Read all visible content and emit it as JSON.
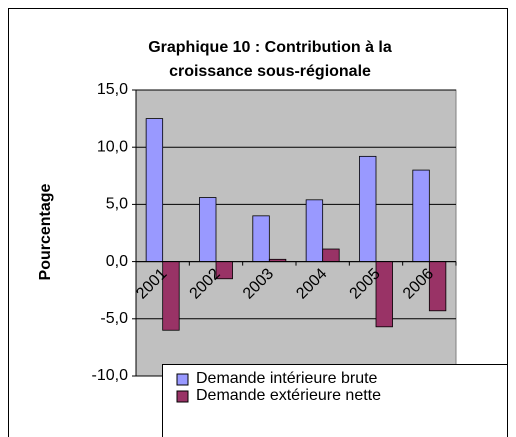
{
  "chart_data": {
    "type": "bar",
    "title": [
      "Graphique 10 : Contribution à la",
      "croissance sous-régionale"
    ],
    "y_label": "Pourcentage",
    "categories": [
      "2001",
      "2002",
      "2003",
      "2004",
      "2005",
      "2006"
    ],
    "series": [
      {
        "name": "Demande intérieure brute",
        "color": "#9999ff",
        "values": [
          12.5,
          5.6,
          4.0,
          5.4,
          9.2,
          8.0
        ]
      },
      {
        "name": "Demande extérieure nette",
        "color": "#993366",
        "values": [
          -6.0,
          -1.5,
          0.2,
          1.1,
          -5.7,
          -4.3
        ]
      }
    ],
    "ylim": [
      -10,
      15
    ],
    "yticks": [
      {
        "value": -10,
        "label": "-10,0"
      },
      {
        "value": -5,
        "label": "-5,0"
      },
      {
        "value": 0,
        "label": "0,0"
      },
      {
        "value": 5,
        "label": "5,0"
      },
      {
        "value": 10,
        "label": "10,0"
      },
      {
        "value": 15,
        "label": "15,0"
      }
    ],
    "grid": true,
    "plot_background": "#c0c0c0",
    "legend": "bottom"
  }
}
